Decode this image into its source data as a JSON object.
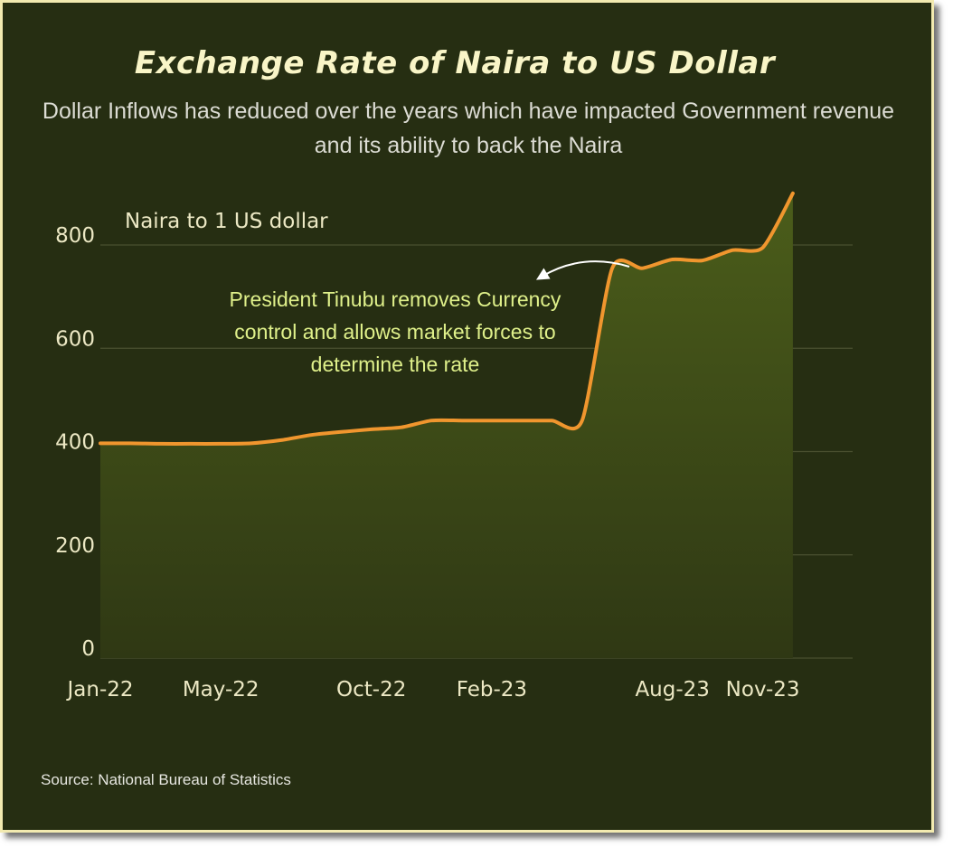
{
  "title": "Exchange Rate of Naira to US Dollar",
  "subtitle": "Dollar Inflows has reduced over the years which have impacted Government revenue and its ability to back the Naira",
  "source": "Source: National Bureau of Statistics",
  "colors": {
    "background": "#262e12",
    "border": "#f2eab0",
    "line": "#f0962e",
    "grid": "#4a5030",
    "area_fill": "#4b5d1a"
  },
  "chart_data": {
    "type": "area",
    "unit_label": "Naira to 1 US dollar",
    "y_ticks": [
      {
        "value": 0,
        "label": "0"
      },
      {
        "value": 200,
        "label": "200"
      },
      {
        "value": 400,
        "label": "400"
      },
      {
        "value": 600,
        "label": "600"
      },
      {
        "value": 800,
        "label": "800"
      }
    ],
    "ylim": [
      0,
      800
    ],
    "x_ticks": [
      {
        "date": "2022-01",
        "label": "Jan-22"
      },
      {
        "date": "2022-05",
        "label": "May-22"
      },
      {
        "date": "2022-10",
        "label": "Oct-22"
      },
      {
        "date": "2023-02",
        "label": "Feb-23"
      },
      {
        "date": "2023-08",
        "label": "Aug-23"
      },
      {
        "date": "2023-11",
        "label": "Nov-23"
      }
    ],
    "grid": true,
    "series": [
      {
        "points": [
          [
            "2022-01",
            416
          ],
          [
            "2022-02",
            416
          ],
          [
            "2022-03",
            415
          ],
          [
            "2022-04",
            415
          ],
          [
            "2022-05",
            415
          ],
          [
            "2022-06",
            416
          ],
          [
            "2022-07",
            422
          ],
          [
            "2022-08",
            432
          ],
          [
            "2022-09",
            438
          ],
          [
            "2022-10",
            443
          ],
          [
            "2022-11",
            447
          ],
          [
            "2022-12",
            460
          ],
          [
            "2023-01",
            460
          ],
          [
            "2023-02",
            460
          ],
          [
            "2023-03",
            460
          ],
          [
            "2023-04",
            460
          ],
          [
            "2023-05",
            460
          ],
          [
            "2023-06",
            755
          ],
          [
            "2023-07",
            755
          ],
          [
            "2023-08",
            772
          ],
          [
            "2023-09",
            770
          ],
          [
            "2023-10",
            790
          ],
          [
            "2023-11",
            795
          ],
          [
            "2023-12",
            900
          ]
        ]
      }
    ],
    "annotation": {
      "text_lines": [
        "President Tinubu removes Currency",
        "control and allows market forces to",
        "determine the rate"
      ]
    }
  }
}
